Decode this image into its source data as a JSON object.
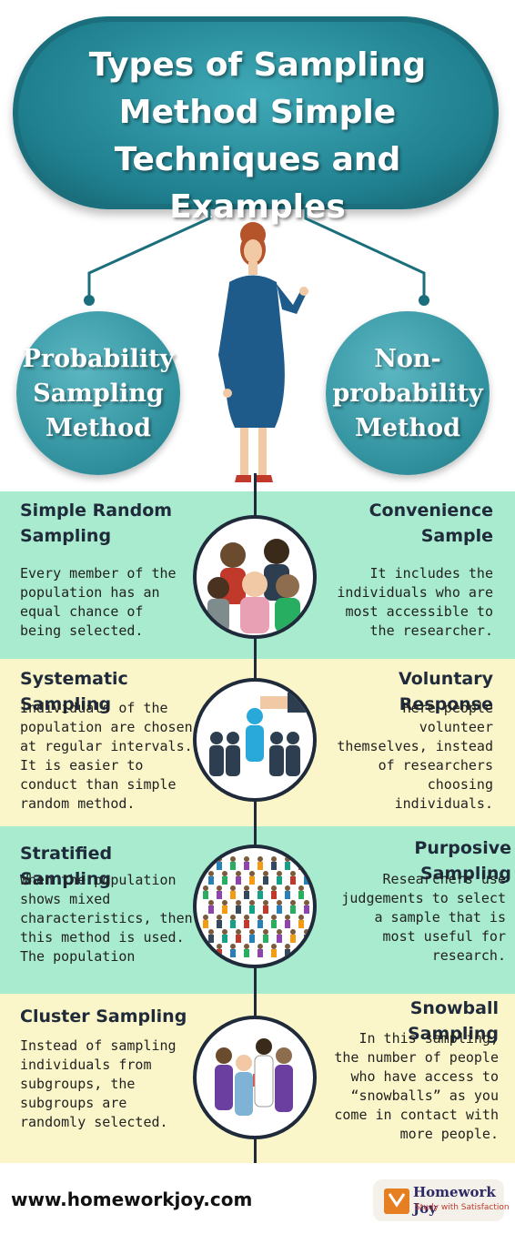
{
  "title": "Types of Sampling Method Simple Techniques and Examples",
  "left_category": "Probability Sampling Method",
  "right_category": "Non-probability Method",
  "rows": [
    {
      "left_heading": "Simple Random Sampling",
      "left_text": "Every member of the population has an equal chance of being selected.",
      "right_heading": "Convenience Sample",
      "right_text": "It includes the individuals who are most accessible to the researcher."
    },
    {
      "left_heading": "Systematic Sampling",
      "left_text": "Individuals of the population are chosen at regular intervals. It is easier to conduct than simple random method.",
      "right_heading": "Voluntary Response",
      "right_text": "Here people volunteer themselves, instead of researchers choosing individuals."
    },
    {
      "left_heading": "Stratified Sampling",
      "left_text": "When the population shows mixed characteristics, then this method is used. The population divides into subgroups.",
      "right_heading": "Purposive Sampling",
      "right_text": "Researchers use judgements to select a sample that is most useful for research."
    },
    {
      "left_heading": "Cluster Sampling",
      "left_text": "Instead of sampling individuals from subgroups, the subgroups are randomly selected.",
      "right_heading": "Snowball Sampling",
      "right_text": "In this sampling, the number of people who have access to “snowballs” as you come in contact with more people."
    }
  ],
  "footer": {
    "website": "www.homeworkjoy.com",
    "logo_name": "Homework Joy",
    "logo_tagline": "Study with Satisfaction"
  },
  "colors": {
    "teal": "#2f8f9c",
    "green_band": "#a8ebcf",
    "yellow_band": "#fbf6c9",
    "dark": "#1f2a3a"
  }
}
